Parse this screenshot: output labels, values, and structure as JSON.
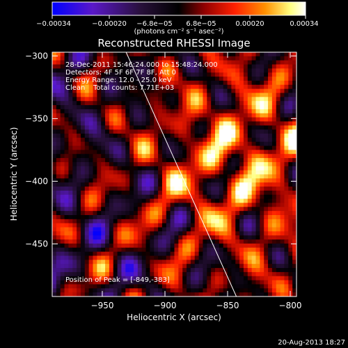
{
  "chart_data": {
    "type": "heatmap",
    "title": "Reconstructed RHESSI Image",
    "xlabel": "Heliocentric X (arcsec)",
    "ylabel": "Heliocentric Y (arcsec)",
    "xlim": [
      -990,
      -795
    ],
    "ylim": [
      -492,
      -297
    ],
    "x_ticks": [
      -950,
      -900,
      -850,
      -800
    ],
    "x_tick_labels": [
      "−950",
      "−900",
      "−850",
      "−800"
    ],
    "y_ticks": [
      -300,
      -350,
      -400,
      -450
    ],
    "y_tick_labels": [
      "−300",
      "−350",
      "−400",
      "−450"
    ],
    "colorbar": {
      "range": [
        -0.00034,
        0.00034
      ],
      "tick_labels": [
        "−0.00034",
        "−0.00020",
        "−6.8e−05",
        "6.8e−05",
        "0.00020",
        "0.00034"
      ],
      "unit_label": "(photons cm⁻² s⁻¹ asec⁻²)",
      "colors": [
        "#0000ff",
        "#5a18c8",
        "#28103a",
        "#000000",
        "#900000",
        "#ff2000",
        "#ff9000",
        "#ffff80",
        "#ffffff"
      ]
    },
    "annotations": {
      "time_range": "28-Dec-2011 15:46:24.000 to 15:48:24.000",
      "detectors": "Detectors: 4F 5F 6F 7F 8F, Att 0",
      "energy_range": "Energy Range: 12.0 - 25.0 keV",
      "method": "Clean",
      "total_counts": "Total counts: 7.71E+03",
      "peak": "Position of Peak = [-849,-383]"
    },
    "limb_line": {
      "x": [
        -931,
        -843
      ],
      "y": [
        -297,
        -492
      ]
    },
    "peak_position": [
      -849,
      -383
    ]
  },
  "footer": {
    "timestamp": "20-Aug-2013 18:27"
  }
}
